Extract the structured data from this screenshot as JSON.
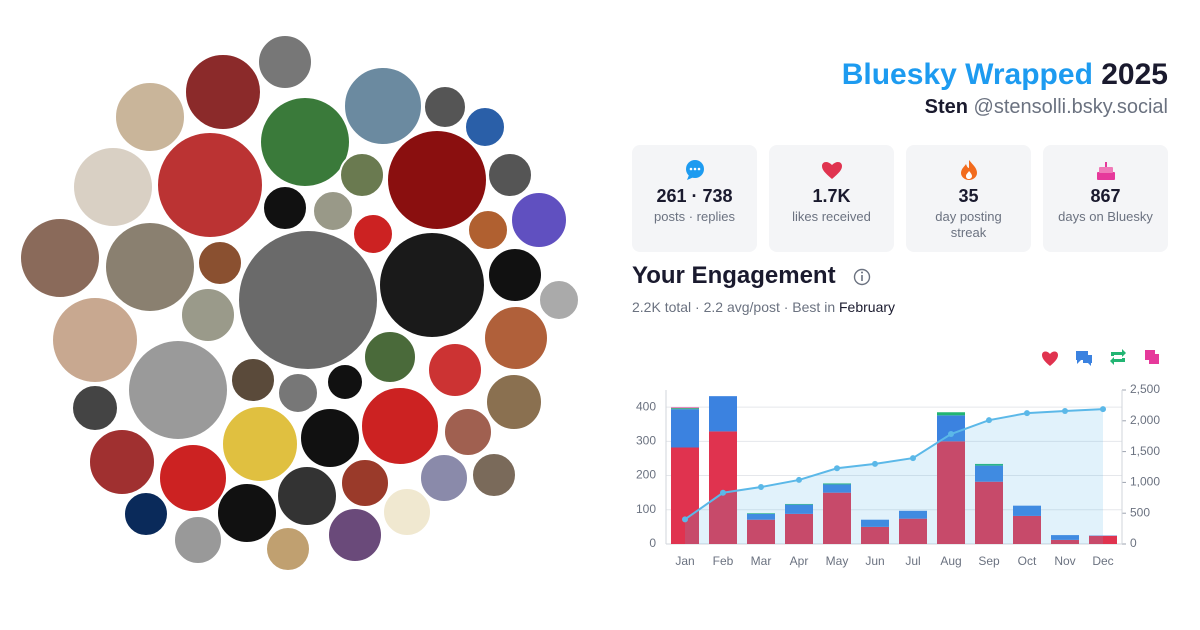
{
  "header": {
    "title": "Bluesky Wrapped",
    "year": "2025",
    "name": "Sten",
    "handle": "@stensolli.bsky.social"
  },
  "stats": [
    {
      "value": "261 · 738",
      "label": "posts · replies"
    },
    {
      "value": "1.7K",
      "label": "likes received"
    },
    {
      "value": "35",
      "label": "day posting streak"
    },
    {
      "value": "867",
      "label": "days on Bluesky"
    }
  ],
  "engagement": {
    "title": "Your Engagement",
    "summary": "2.2K total · 2.2 avg/post · Best in",
    "best_month": "February"
  },
  "chart_data": {
    "type": "bar",
    "categories": [
      "Jan",
      "Feb",
      "Mar",
      "Apr",
      "May",
      "Jun",
      "Jul",
      "Aug",
      "Sep",
      "Oct",
      "Nov",
      "Dec"
    ],
    "series": [
      {
        "color": "#e0334f",
        "values": [
          282,
          329,
          71,
          88,
          150,
          50,
          74,
          300,
          182,
          82,
          12,
          24
        ]
      },
      {
        "color": "#3b82e0",
        "values": [
          112,
          103,
          17,
          27,
          24,
          21,
          23,
          76,
          47,
          30,
          14,
          1
        ]
      },
      {
        "color": "#22b573",
        "values": [
          3,
          0,
          2,
          2,
          3,
          0,
          0,
          9,
          5,
          0,
          0,
          0
        ]
      },
      {
        "color": "#e6399b",
        "values": [
          2,
          0,
          0,
          0,
          0,
          0,
          0,
          0,
          0,
          0,
          0,
          0
        ]
      },
      {
        "color": "#5bb8e8",
        "axis": "y2",
        "values": [
          400,
          832,
          925,
          1040,
          1230,
          1300,
          1395,
          1785,
          2010,
          2125,
          2160,
          2190
        ]
      }
    ],
    "ylim": [
      0,
      450
    ],
    "yticks": [
      0,
      100,
      200,
      300,
      400
    ],
    "y2lim": [
      0,
      2500
    ],
    "y2ticks": [
      0,
      500,
      {
        "value": 1000,
        "label": "1,000"
      },
      {
        "value": 1500,
        "label": "1,500"
      },
      {
        "value": 2000,
        "label": "2,000"
      },
      {
        "value": 2500,
        "label": "2,500"
      }
    ],
    "grid": true
  }
}
